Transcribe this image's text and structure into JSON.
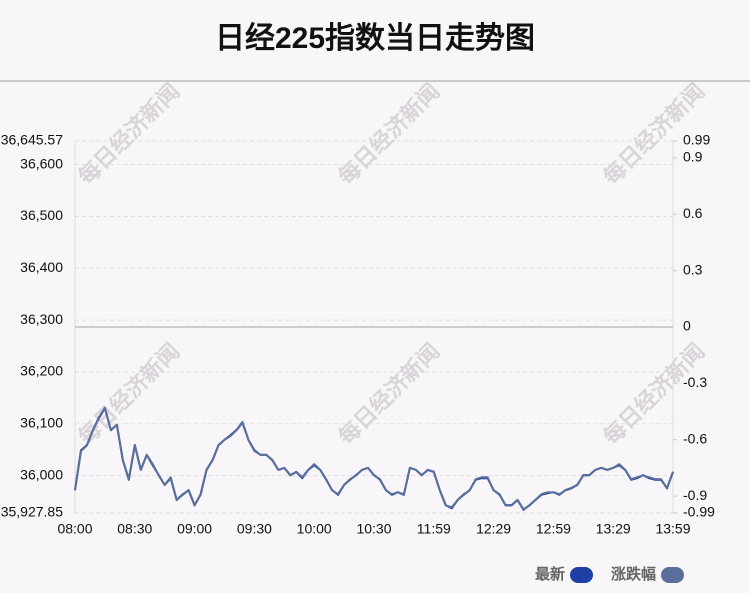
{
  "chart_data": {
    "type": "line",
    "title": "日经225指数当日走势图",
    "watermark": "每日经济新闻",
    "categories": [
      "08:00",
      null,
      null,
      null,
      null,
      null,
      null,
      null,
      null,
      null,
      "08:30",
      null,
      null,
      null,
      null,
      null,
      null,
      null,
      null,
      null,
      "09:00",
      null,
      null,
      null,
      null,
      null,
      null,
      null,
      null,
      null,
      "09:30",
      null,
      null,
      null,
      null,
      null,
      null,
      null,
      null,
      null,
      "10:00",
      null,
      null,
      null,
      null,
      null,
      null,
      null,
      null,
      null,
      "10:30",
      null,
      null,
      null,
      null,
      null,
      null,
      null,
      null,
      null,
      "11:59",
      null,
      null,
      null,
      null,
      null,
      null,
      null,
      null,
      null,
      "12:29",
      null,
      null,
      null,
      null,
      null,
      null,
      null,
      null,
      null,
      "12:59",
      null,
      null,
      null,
      null,
      null,
      null,
      null,
      null,
      null,
      "13:29",
      null,
      null,
      null,
      null,
      null,
      null,
      null,
      null,
      null,
      "13:59"
    ],
    "series": [
      {
        "name": "最新",
        "color": "#1e3fa3",
        "values": [
          35972,
          36049,
          36059,
          36088,
          36111,
          36130,
          36088,
          36098,
          36030,
          35992,
          36059,
          36011,
          36040,
          36020,
          36001,
          35982,
          35995,
          35953,
          35963,
          35972,
          35943,
          35963,
          36011,
          36030,
          36059,
          36069,
          36078,
          36088,
          36103,
          36069,
          36049,
          36040,
          36040,
          36030,
          36011,
          36015,
          36001,
          36007,
          35995,
          36011,
          36020,
          36011,
          35992,
          35972,
          35963,
          35982,
          35992,
          36001,
          36011,
          36015,
          36001,
          35992,
          35972,
          35963,
          35968,
          35963,
          36015,
          36011,
          36001,
          36011,
          36007,
          35972,
          35943,
          35937,
          35953,
          35963,
          35972,
          35992,
          35995,
          35995,
          35972,
          35963,
          35943,
          35943,
          35953,
          35934,
          35943,
          35953,
          35963,
          35966,
          35968,
          35963,
          35972,
          35976,
          35982,
          36001,
          36001,
          36011,
          36015,
          36011,
          36015,
          36020,
          36011,
          35992,
          35995,
          36001,
          35995,
          35992,
          35992,
          35976,
          36007
        ]
      },
      {
        "name": "涨跌幅",
        "color": "#5b6f9c",
        "axis": "y2",
        "values": [
          -0.87,
          -0.66,
          -0.63,
          -0.55,
          -0.48,
          -0.43,
          -0.55,
          -0.52,
          -0.71,
          -0.81,
          -0.63,
          -0.76,
          -0.68,
          -0.73,
          -0.79,
          -0.84,
          -0.8,
          -0.92,
          -0.89,
          -0.87,
          -0.95,
          -0.89,
          -0.76,
          -0.71,
          -0.63,
          -0.6,
          -0.58,
          -0.55,
          -0.51,
          -0.6,
          -0.66,
          -0.68,
          -0.68,
          -0.71,
          -0.76,
          -0.75,
          -0.79,
          -0.77,
          -0.8,
          -0.76,
          -0.73,
          -0.76,
          -0.81,
          -0.87,
          -0.89,
          -0.84,
          -0.81,
          -0.79,
          -0.76,
          -0.75,
          -0.79,
          -0.81,
          -0.87,
          -0.89,
          -0.88,
          -0.89,
          -0.75,
          -0.76,
          -0.79,
          -0.76,
          -0.77,
          -0.87,
          -0.95,
          -0.96,
          -0.92,
          -0.89,
          -0.87,
          -0.81,
          -0.8,
          -0.8,
          -0.87,
          -0.89,
          -0.95,
          -0.95,
          -0.92,
          -0.97,
          -0.95,
          -0.92,
          -0.89,
          -0.88,
          -0.88,
          -0.89,
          -0.87,
          -0.86,
          -0.84,
          -0.79,
          -0.79,
          -0.76,
          -0.75,
          -0.76,
          -0.75,
          -0.73,
          -0.76,
          -0.81,
          -0.8,
          -0.79,
          -0.8,
          -0.81,
          -0.81,
          -0.86,
          -0.77
        ]
      }
    ],
    "ylim": [
      35927.85,
      36645.57
    ],
    "yticks": [
      {
        "value": 35927.85,
        "label": "35,927.85"
      },
      {
        "value": 36000,
        "label": "36,000"
      },
      {
        "value": 36100,
        "label": "36,100"
      },
      {
        "value": 36200,
        "label": "36,200"
      },
      {
        "value": 36300,
        "label": "36,300"
      },
      {
        "value": 36400,
        "label": "36,400"
      },
      {
        "value": 36500,
        "label": "36,500"
      },
      {
        "value": 36600,
        "label": "36,600"
      },
      {
        "value": 36645.57,
        "label": "36,645.57"
      }
    ],
    "y2lim": [
      -0.99,
      0.99
    ],
    "y2ticks": [
      -0.99,
      -0.9,
      -0.6,
      -0.3,
      0,
      0.3,
      0.6,
      0.9,
      0.99
    ],
    "grid": true
  }
}
